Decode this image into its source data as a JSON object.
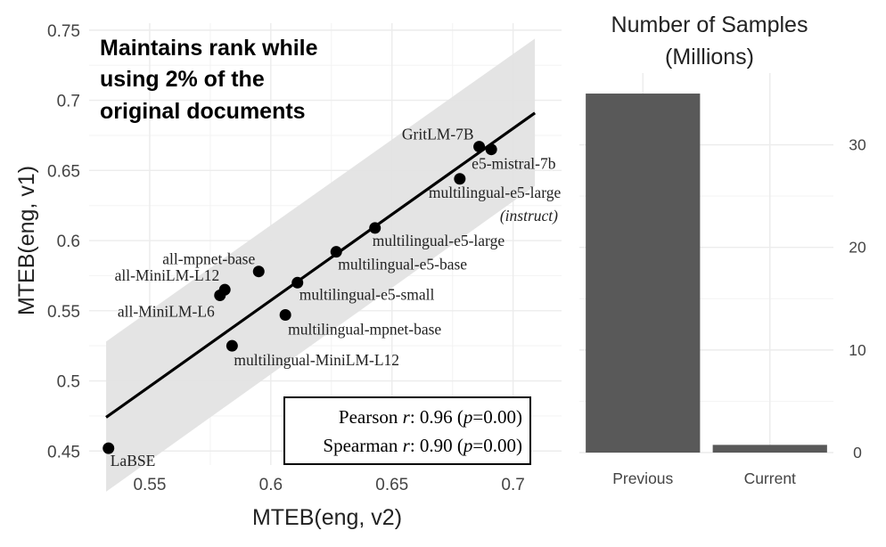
{
  "chart_data": [
    {
      "type": "scatter",
      "xlabel": "MTEB(eng, v2)",
      "ylabel": "MTEB(eng, v1)",
      "xlim": [
        0.525,
        0.72
      ],
      "ylim": [
        0.44,
        0.755
      ],
      "x_ticks": [
        0.55,
        0.6,
        0.65,
        0.7
      ],
      "y_ticks": [
        0.45,
        0.5,
        0.55,
        0.6,
        0.65,
        0.7,
        0.75
      ],
      "x_tick_labels": [
        "0.55",
        "0.6",
        "0.65",
        "0.7"
      ],
      "y_tick_labels": [
        "0.45",
        "0.5",
        "0.55",
        "0.6",
        "0.65",
        "0.7",
        "0.75"
      ],
      "grid": true,
      "annotation": [
        "Maintains rank while",
        "using 2% of the",
        "original documents"
      ],
      "points": [
        {
          "label": "LaBSE",
          "x": 0.533,
          "y": 0.452
        },
        {
          "label": "all-MiniLM-L6",
          "x": 0.579,
          "y": 0.561
        },
        {
          "label": "all-MiniLM-L12",
          "x": 0.581,
          "y": 0.565
        },
        {
          "label": "all-mpnet-base",
          "x": 0.595,
          "y": 0.578
        },
        {
          "label": "multilingual-MiniLM-L12",
          "x": 0.584,
          "y": 0.525
        },
        {
          "label": "multilingual-mpnet-base",
          "x": 0.606,
          "y": 0.547
        },
        {
          "label": "multilingual-e5-small",
          "x": 0.611,
          "y": 0.57
        },
        {
          "label": "multilingual-e5-base",
          "x": 0.627,
          "y": 0.592
        },
        {
          "label": "multilingual-e5-large",
          "x": 0.643,
          "y": 0.609
        },
        {
          "label": "multilingual-e5-large",
          "label_suffix": "(instruct)",
          "x": 0.678,
          "y": 0.644
        },
        {
          "label": "GritLM-7B",
          "x": 0.686,
          "y": 0.667
        },
        {
          "label": "e5-mistral-7b",
          "x": 0.691,
          "y": 0.665
        }
      ],
      "fit_line": {
        "x": [
          0.532,
          0.709
        ],
        "y": [
          0.474,
          0.691
        ]
      },
      "confidence_band": {
        "x": [
          0.532,
          0.709
        ],
        "upper": [
          0.528,
          0.744
        ],
        "lower": [
          0.421,
          0.639
        ]
      },
      "stats": {
        "pearson_prefix": "Pearson ",
        "pearson_var": "r",
        "pearson_mid": ": 0.96 (",
        "pearson_p": "p",
        "pearson_end": "=0.00)",
        "spearman_prefix": "Spearman ",
        "spearman_var": "r",
        "spearman_mid": ": 0.90 (",
        "spearman_p": "p",
        "spearman_end": "=0.00)"
      },
      "colors": {
        "point": "#000000",
        "band": "#e3e3e3",
        "grid": "#ececec",
        "line": "#000000"
      }
    },
    {
      "type": "bar",
      "title": [
        "Number of Samples",
        "(Millions)"
      ],
      "categories": [
        "Previous",
        "Current"
      ],
      "values": [
        35,
        0.75
      ],
      "ylim": [
        0,
        37
      ],
      "y_ticks": [
        0,
        10,
        20,
        30
      ],
      "y_tick_labels": [
        "0",
        "10",
        "20",
        "30"
      ],
      "y_axis_side": "right",
      "grid": true,
      "colors": {
        "bar": "#595959",
        "grid": "#ececec"
      }
    }
  ]
}
